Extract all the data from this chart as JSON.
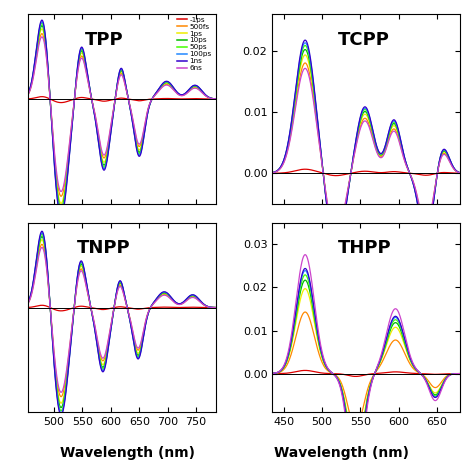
{
  "legend_labels": [
    "-1ps",
    "500fs",
    "1ps",
    "10ps",
    "50ps",
    "100ps",
    "1ns",
    "6ns"
  ],
  "colors": [
    "#dd0000",
    "#ff8800",
    "#eeee00",
    "#00bb00",
    "#44ff00",
    "#2288ff",
    "#3300cc",
    "#cc44cc"
  ],
  "xlabel": "Wavelength (nm)",
  "tpp_xlim": [
    455,
    785
  ],
  "tpp_xticks": [
    500,
    550,
    600,
    650,
    700,
    750
  ],
  "right_xlim": [
    435,
    680
  ],
  "right_xticks": [
    450,
    500,
    550,
    600,
    650
  ],
  "tcpp_yticks": [
    0.0,
    0.01,
    0.02
  ],
  "tcpp_ylim": [
    -0.005,
    0.026
  ],
  "thpp_yticks": [
    0.0,
    0.01,
    0.02,
    0.03
  ],
  "thpp_ylim": [
    -0.009,
    0.035
  ],
  "scales_tpp": [
    0.03,
    0.82,
    0.88,
    0.92,
    0.95,
    0.97,
    0.99,
    0.78
  ],
  "scales_tcpp": [
    0.03,
    0.82,
    0.88,
    0.92,
    0.95,
    0.97,
    0.99,
    0.78
  ],
  "scales_tnpp": [
    0.03,
    0.82,
    0.88,
    0.92,
    0.95,
    0.97,
    0.99,
    0.78
  ],
  "scales_thpp": [
    0.03,
    0.58,
    0.8,
    0.88,
    0.93,
    0.97,
    0.99,
    1.12
  ]
}
